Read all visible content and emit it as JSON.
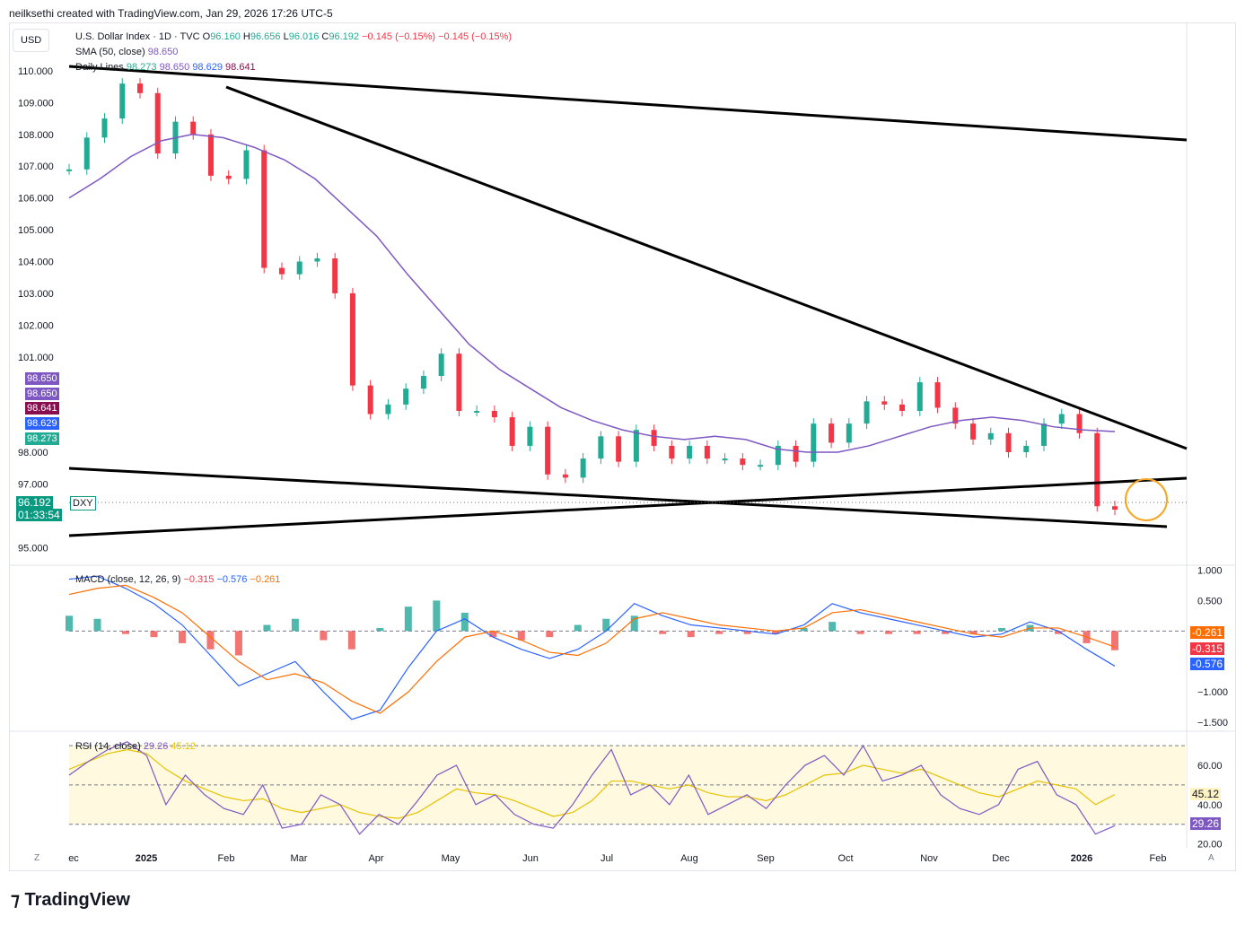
{
  "header": {
    "credit": "neilksethi created with TradingView.com, Jan 29, 2026 17:26 UTC-5"
  },
  "currency_button": "USD",
  "legend": {
    "symbol": "U.S. Dollar Index · 1D · TVC",
    "o_label": "O",
    "o": "96.160",
    "h_label": "H",
    "h": "96.656",
    "l_label": "L",
    "l": "96.016",
    "c_label": "C",
    "c": "96.192",
    "chg": "−0.145 (−0.15%)",
    "chg2": "−0.145 (−0.15%)",
    "sma_label": "SMA (50, close)",
    "sma_val": "98.650",
    "daily_label": "Daily Lines",
    "daily_vals": [
      "98.273",
      "98.650",
      "98.629",
      "98.641"
    ]
  },
  "macd_legend": {
    "label": "MACD (close, 12, 26, 9)",
    "vals": [
      "−0.315",
      "−0.576",
      "−0.261"
    ]
  },
  "rsi_legend": {
    "label": "RSI (14, close)",
    "vals": [
      "29.26",
      "45.12"
    ]
  },
  "price_tags": [
    {
      "text": "98.650",
      "color": "#7e57c2"
    },
    {
      "text": "98.650",
      "color": "#7e57c2"
    },
    {
      "text": "98.641",
      "color": "#880e4f"
    },
    {
      "text": "98.629",
      "color": "#2962ff"
    },
    {
      "text": "98.273",
      "color": "#22ab94"
    }
  ],
  "last_price": {
    "value": "96.192",
    "timer": "01:33:54",
    "symbol": "DXY"
  },
  "macd_tags": [
    "-0.261",
    "-0.315",
    "-0.576"
  ],
  "rsi_tags": [
    "45.12",
    "29.26"
  ],
  "bottom_left": "Z",
  "bottom_right": "A",
  "brand": "TradingView",
  "colors": {
    "up": "#22ab94",
    "down": "#f23645",
    "sma20": "#4db6ac",
    "sma50": "#7e57c2",
    "sma100": "#3d5afe",
    "sma200": "#8d5a5a",
    "trend": "#000000",
    "circle": "#f5a623"
  },
  "chart_data": [
    {
      "type": "line",
      "title": "U.S. Dollar Index · 1D · TVC",
      "y_ticks": [
        "110.000",
        "109.000",
        "108.000",
        "107.000",
        "106.000",
        "105.000",
        "104.000",
        "103.000",
        "102.000",
        "101.000",
        "98.000",
        "97.000",
        "95.000"
      ],
      "x_ticks": [
        "ec",
        "2025",
        "Feb",
        "Mar",
        "Apr",
        "May",
        "Jun",
        "Jul",
        "Aug",
        "Sep",
        "Oct",
        "Nov",
        "Dec",
        "2026",
        "Feb"
      ],
      "ylim": [
        94.5,
        111.1
      ],
      "series": [
        {
          "name": "Close",
          "dates": [
            "2024-12-16",
            "2024-12-23",
            "2024-12-30",
            "2025-01-06",
            "2025-01-13",
            "2025-01-20",
            "2025-01-27",
            "2025-02-03",
            "2025-02-10",
            "2025-02-17",
            "2025-02-24",
            "2025-03-03",
            "2025-03-10",
            "2025-03-17",
            "2025-03-24",
            "2025-03-31",
            "2025-04-07",
            "2025-04-14",
            "2025-04-21",
            "2025-04-28",
            "2025-05-05",
            "2025-05-12",
            "2025-05-19",
            "2025-05-26",
            "2025-06-02",
            "2025-06-09",
            "2025-06-16",
            "2025-06-23",
            "2025-06-30",
            "2025-07-07",
            "2025-07-14",
            "2025-07-21",
            "2025-07-28",
            "2025-08-04",
            "2025-08-11",
            "2025-08-18",
            "2025-08-25",
            "2025-09-01",
            "2025-09-08",
            "2025-09-15",
            "2025-09-22",
            "2025-09-29",
            "2025-10-06",
            "2025-10-13",
            "2025-10-20",
            "2025-10-27",
            "2025-11-03",
            "2025-11-10",
            "2025-11-17",
            "2025-11-24",
            "2025-12-01",
            "2025-12-08",
            "2025-12-15",
            "2025-12-22",
            "2025-12-29",
            "2026-01-05",
            "2026-01-12",
            "2026-01-19",
            "2026-01-26",
            "2026-01-29"
          ],
          "values": [
            106.9,
            107.9,
            108.5,
            109.6,
            109.3,
            107.4,
            108.4,
            108.0,
            106.7,
            106.6,
            107.5,
            103.8,
            103.6,
            104.0,
            104.1,
            103.0,
            100.1,
            99.2,
            99.5,
            100.0,
            100.4,
            101.1,
            99.3,
            99.3,
            99.1,
            98.2,
            98.8,
            97.3,
            97.2,
            97.8,
            98.5,
            97.7,
            98.7,
            98.2,
            97.8,
            98.2,
            97.8,
            97.8,
            97.6,
            97.6,
            98.2,
            97.7,
            98.9,
            98.3,
            98.9,
            99.6,
            99.5,
            99.3,
            100.2,
            99.4,
            98.9,
            98.4,
            98.6,
            98.0,
            98.2,
            98.9,
            99.2,
            98.6,
            96.3,
            96.192
          ]
        },
        {
          "name": "SMA (50, close)",
          "values": [
            106.0,
            106.6,
            107.3,
            107.8,
            108.0,
            107.9,
            107.6,
            107.2,
            106.6,
            105.7,
            104.8,
            103.6,
            102.5,
            101.4,
            100.6,
            100.0,
            99.4,
            99.0,
            98.7,
            98.5,
            98.4,
            98.5,
            98.4,
            98.1,
            98.0,
            98.0,
            98.2,
            98.5,
            98.8,
            99.0,
            99.1,
            99.0,
            98.8,
            98.7,
            98.65
          ]
        }
      ]
    },
    {
      "type": "bar",
      "title": "MACD (close, 12, 26, 9)",
      "y_ticks": [
        "1.000",
        "0.500",
        "−1.000",
        "−1.500"
      ],
      "ylim": [
        -1.6,
        1.05
      ],
      "series": [
        {
          "name": "MACD",
          "values": [
            0.85,
            0.9,
            0.7,
            0.45,
            0.1,
            -0.4,
            -0.9,
            -0.7,
            -0.5,
            -1.0,
            -1.45,
            -1.3,
            -0.6,
            0.0,
            0.2,
            -0.1,
            -0.3,
            -0.45,
            -0.3,
            0.0,
            0.45,
            0.25,
            0.1,
            0.05,
            0.0,
            -0.05,
            0.1,
            0.45,
            0.3,
            0.2,
            0.1,
            0.0,
            -0.1,
            -0.05,
            0.15,
            0.0,
            -0.3,
            -0.576
          ]
        },
        {
          "name": "Signal",
          "values": [
            0.6,
            0.7,
            0.75,
            0.55,
            0.3,
            -0.1,
            -0.5,
            -0.8,
            -0.7,
            -0.85,
            -1.15,
            -1.35,
            -1.0,
            -0.5,
            -0.1,
            0.0,
            -0.15,
            -0.35,
            -0.4,
            -0.2,
            0.2,
            0.3,
            0.2,
            0.1,
            0.05,
            0.0,
            0.05,
            0.3,
            0.35,
            0.25,
            0.15,
            0.05,
            -0.05,
            -0.1,
            0.05,
            0.05,
            -0.1,
            -0.261
          ]
        },
        {
          "name": "Histogram",
          "values": [
            0.25,
            0.2,
            -0.05,
            -0.1,
            -0.2,
            -0.3,
            -0.4,
            0.1,
            0.2,
            -0.15,
            -0.3,
            0.05,
            0.4,
            0.5,
            0.3,
            -0.1,
            -0.15,
            -0.1,
            0.1,
            0.2,
            0.25,
            -0.05,
            -0.1,
            -0.05,
            -0.05,
            -0.05,
            0.05,
            0.15,
            -0.05,
            -0.05,
            -0.05,
            -0.05,
            -0.05,
            0.05,
            0.1,
            -0.05,
            -0.2,
            -0.315
          ]
        }
      ]
    },
    {
      "type": "line",
      "title": "RSI (14, close)",
      "y_ticks": [
        "60.00",
        "40.00",
        "20.00"
      ],
      "ylim": [
        18,
        76
      ],
      "series": [
        {
          "name": "RSI",
          "values": [
            55,
            62,
            68,
            72,
            65,
            40,
            55,
            45,
            38,
            35,
            50,
            28,
            30,
            45,
            40,
            25,
            35,
            30,
            42,
            55,
            60,
            40,
            45,
            35,
            30,
            28,
            40,
            55,
            68,
            45,
            50,
            40,
            55,
            35,
            40,
            45,
            38,
            50,
            60,
            65,
            55,
            70,
            52,
            55,
            60,
            45,
            38,
            35,
            40,
            58,
            62,
            45,
            40,
            25,
            29.26
          ]
        },
        {
          "name": "RSI-based MA",
          "values": [
            58,
            62,
            66,
            68,
            66,
            58,
            52,
            48,
            44,
            42,
            43,
            38,
            36,
            38,
            40,
            36,
            34,
            33,
            36,
            42,
            48,
            46,
            45,
            42,
            38,
            34,
            36,
            42,
            52,
            52,
            50,
            48,
            50,
            46,
            44,
            44,
            42,
            45,
            50,
            55,
            56,
            60,
            58,
            56,
            58,
            54,
            50,
            46,
            44,
            48,
            52,
            50,
            48,
            40,
            45.12
          ]
        }
      ]
    }
  ]
}
